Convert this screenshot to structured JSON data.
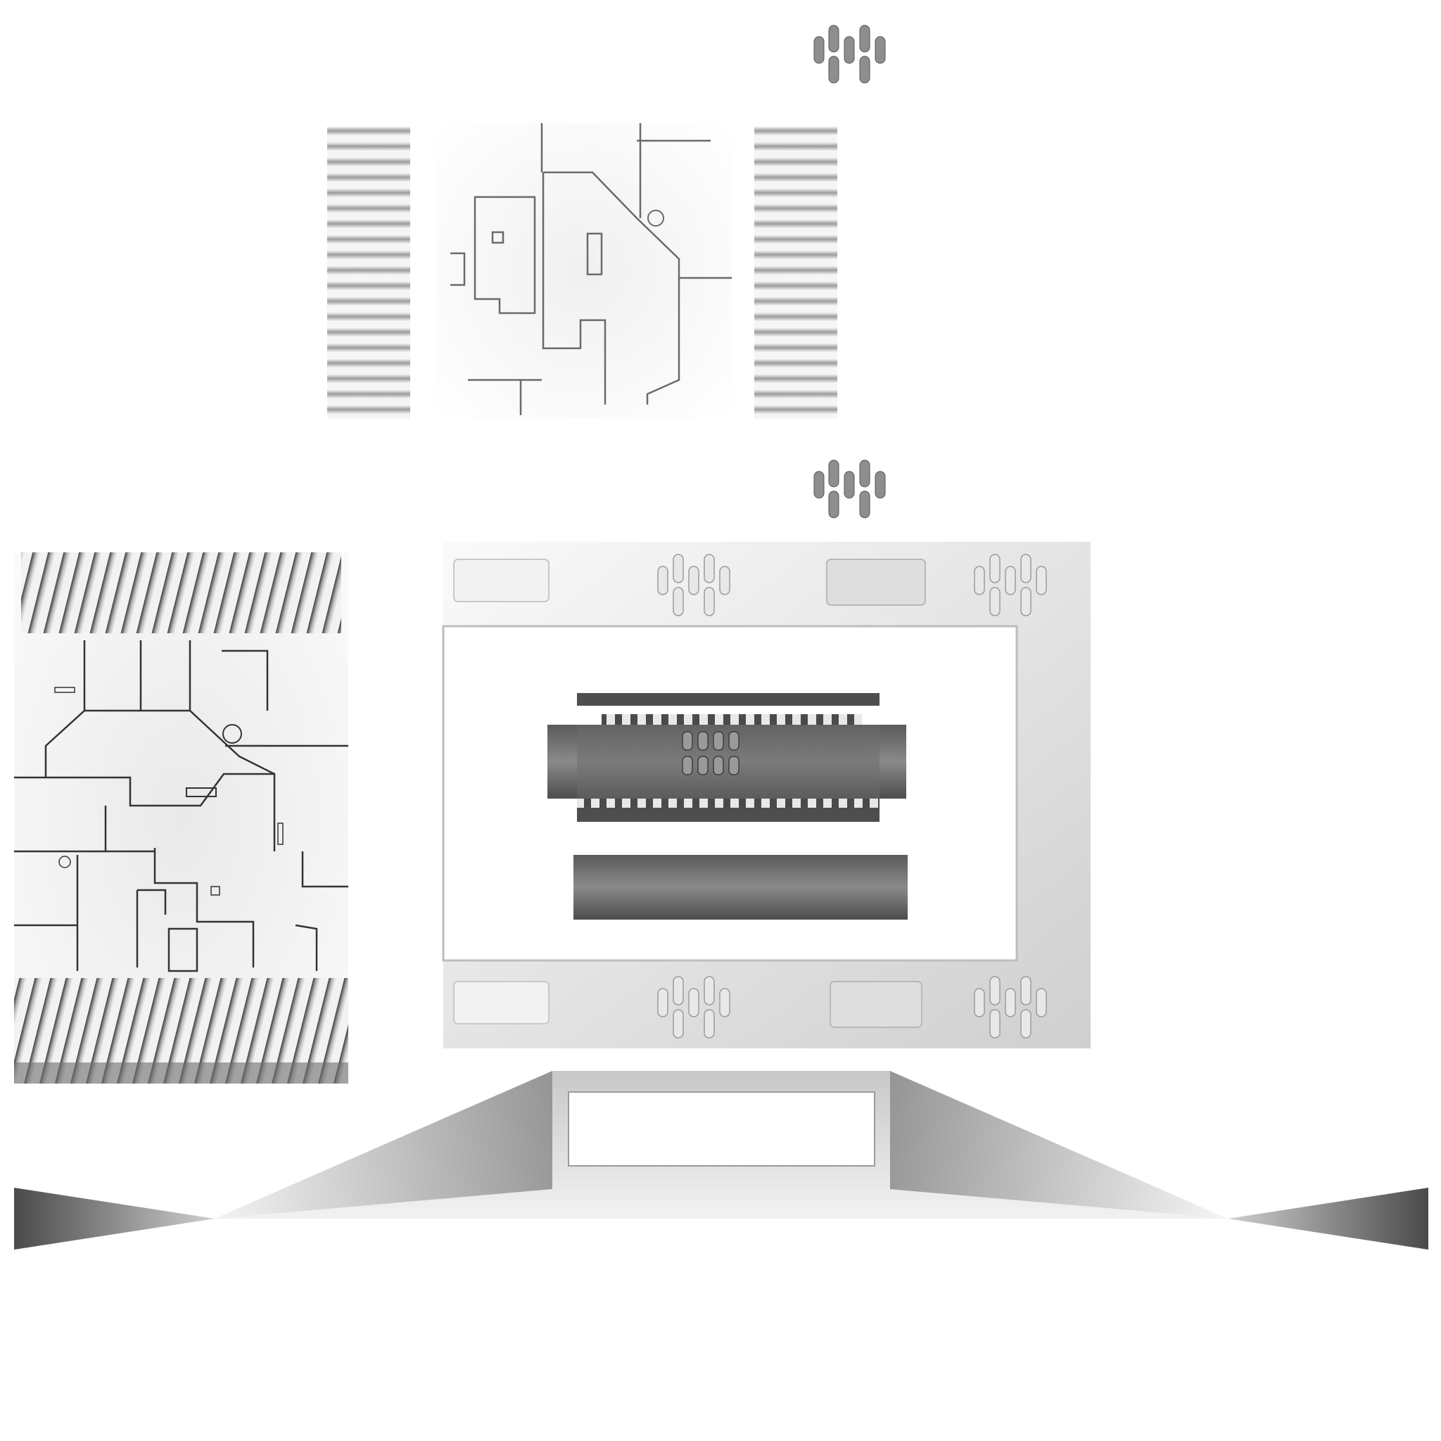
{
  "texture_atlas": {
    "background": "#ffffff",
    "palette": {
      "dark_gray": "#4a4a4a",
      "mid_gray": "#8c8c8c",
      "light_gray": "#d4d4d4",
      "panel_line": "#2e2e2e"
    },
    "parts": [
      "vent-cluster-top",
      "stripe-panel-left",
      "floor-panel-upper",
      "stripe-panel-right",
      "vent-cluster-mid",
      "floor-panel-large",
      "machine-frame",
      "trapezoid-strip"
    ]
  }
}
